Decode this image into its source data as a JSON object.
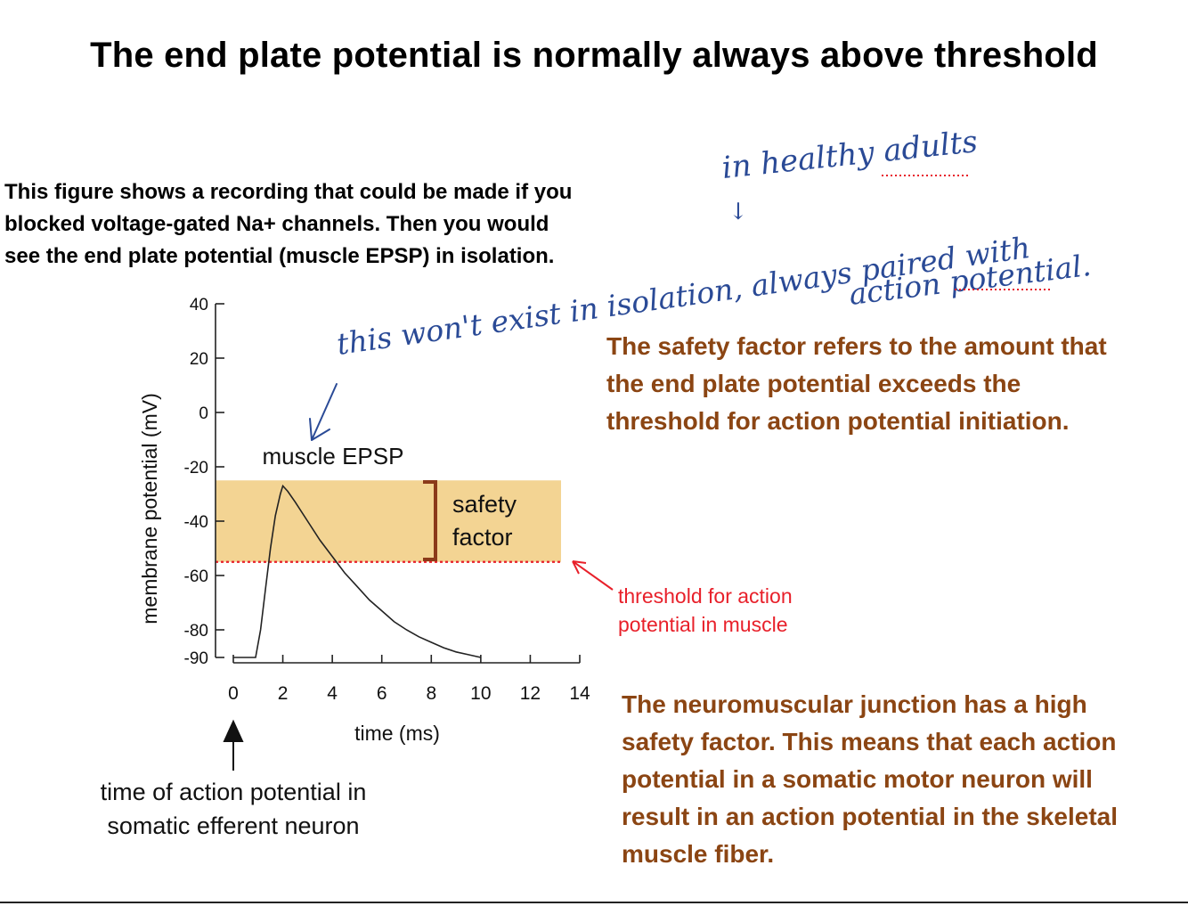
{
  "slide": {
    "title": "The end plate potential is normally always above threshold",
    "intro_lines": [
      "This figure shows a recording that could be made if you",
      "blocked voltage-gated Na+ channels.  Then you would",
      "see the end plate potential (muscle EPSP) in isolation."
    ],
    "safety_note_lines": [
      "The safety factor refers to the amount that",
      "the end plate potential exceeds the",
      "threshold for action potential initiation."
    ],
    "nmj_note_lines": [
      "The neuromuscular junction has a high",
      "safety factor.  This means that each action",
      "potential in a somatic motor neuron will",
      "result in an action potential in the skeletal",
      "muscle fiber."
    ],
    "handwritten": {
      "healthy": "in healthy adults",
      "arrow_down": "↓",
      "line1": "this won't exist in isolation, always paired with",
      "line2": "action potential."
    }
  },
  "chart_data": {
    "type": "line",
    "xlabel": "time (ms)",
    "ylabel": "membrane potential (mV)",
    "xlim": [
      0,
      14
    ],
    "ylim": [
      -90,
      40
    ],
    "x_ticks": [
      0,
      2,
      4,
      6,
      8,
      10,
      12,
      14
    ],
    "y_ticks": [
      40,
      20,
      0,
      -20,
      -40,
      -60,
      -80,
      -90
    ],
    "grid": false,
    "series": [
      {
        "name": "muscle EPSP",
        "color": "#222222",
        "x": [
          0,
          0.9,
          1.1,
          1.3,
          1.5,
          1.7,
          1.9,
          2.0,
          2.2,
          2.5,
          3.0,
          3.5,
          4.0,
          4.5,
          5.0,
          5.5,
          6.0,
          6.5,
          7.0,
          7.5,
          8.0,
          8.5,
          9.0,
          9.5,
          10.0
        ],
        "y": [
          -90,
          -90,
          -80,
          -65,
          -50,
          -38,
          -30,
          -27,
          -29,
          -33,
          -40,
          -47,
          -53,
          -59,
          -64,
          -69,
          -73,
          -77,
          -80,
          -82.5,
          -84.5,
          -86.5,
          -88,
          -89,
          -90
        ]
      }
    ],
    "threshold": {
      "value": -55,
      "label": "threshold for action potential in muscle",
      "color": "#e8202a"
    },
    "safety_band": {
      "from": -55,
      "to": -25,
      "label": "safety factor",
      "color": "#f3d493"
    },
    "annotations": {
      "epsp_label": "muscle EPSP",
      "safety_label_lines": [
        "safety",
        "factor"
      ],
      "threshold_label_lines": [
        "threshold for action",
        "potential in muscle"
      ],
      "stimulus_label_lines": [
        "time of action potential in",
        "somatic efferent neuron"
      ]
    }
  }
}
